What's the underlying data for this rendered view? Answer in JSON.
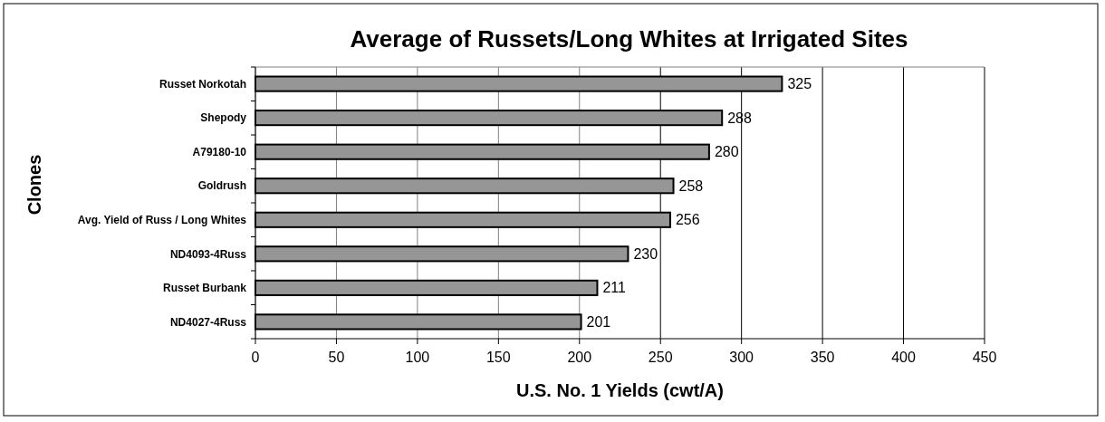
{
  "chart_data": {
    "type": "bar",
    "orientation": "horizontal",
    "title": "Average of Russets/Long Whites at Irrigated Sites",
    "xlabel": "U.S. No. 1 Yields (cwt/A)",
    "ylabel": "Clones",
    "categories": [
      "Russet Norkotah",
      "Shepody",
      "A79180-10",
      "Goldrush",
      "Avg. Yield of Russ / Long Whites",
      "ND4093-4Russ",
      "Russet Burbank",
      "ND4027-4Russ"
    ],
    "values": [
      325,
      288,
      280,
      258,
      256,
      230,
      211,
      201
    ],
    "color": "#969696",
    "xlim": [
      0,
      450
    ],
    "xticks": [
      0,
      50,
      100,
      150,
      200,
      250,
      300,
      350,
      400,
      450
    ],
    "grid": "x",
    "data_labels": true
  }
}
